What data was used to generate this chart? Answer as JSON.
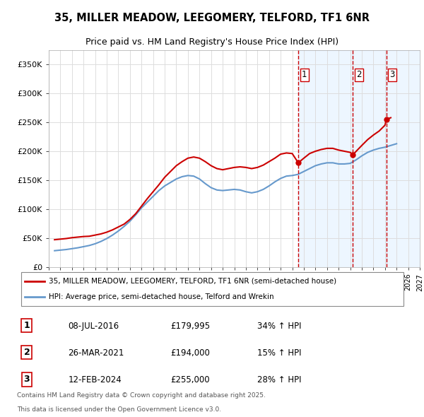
{
  "title": "35, MILLER MEADOW, LEEGOMERY, TELFORD, TF1 6NR",
  "subtitle": "Price paid vs. HM Land Registry's House Price Index (HPI)",
  "legend_line1": "35, MILLER MEADOW, LEEGOMERY, TELFORD, TF1 6NR (semi-detached house)",
  "legend_line2": "HPI: Average price, semi-detached house, Telford and Wrekin",
  "footer1": "Contains HM Land Registry data © Crown copyright and database right 2025.",
  "footer2": "This data is licensed under the Open Government Licence v3.0.",
  "transactions": [
    {
      "num": "1",
      "date": "08-JUL-2016",
      "price": "£179,995",
      "change": "34% ↑ HPI",
      "x": 2016.52
    },
    {
      "num": "2",
      "date": "26-MAR-2021",
      "price": "£194,000",
      "change": "15% ↑ HPI",
      "x": 2021.23
    },
    {
      "num": "3",
      "date": "12-FEB-2024",
      "price": "£255,000",
      "change": "28% ↑ HPI",
      "x": 2024.12
    }
  ],
  "red_line_color": "#cc0000",
  "blue_line_color": "#6699cc",
  "vline_color": "#cc0000",
  "hatch_color": "#ddeeff",
  "ylim": [
    0,
    375000
  ],
  "xlim_start": 1995,
  "xlim_end": 2027,
  "yticks": [
    0,
    50000,
    100000,
    150000,
    200000,
    250000,
    300000,
    350000
  ],
  "ytick_labels": [
    "£0",
    "£50K",
    "£100K",
    "£150K",
    "£200K",
    "£250K",
    "£300K",
    "£350K"
  ],
  "xticks": [
    1995,
    1996,
    1997,
    1998,
    1999,
    2000,
    2001,
    2002,
    2003,
    2004,
    2005,
    2006,
    2007,
    2008,
    2009,
    2010,
    2011,
    2012,
    2013,
    2014,
    2015,
    2016,
    2017,
    2018,
    2019,
    2020,
    2021,
    2022,
    2023,
    2024,
    2025,
    2026,
    2027
  ],
  "red_x": [
    1995.5,
    1996.0,
    1996.5,
    1997.0,
    1997.5,
    1998.0,
    1998.5,
    1999.0,
    1999.5,
    2000.0,
    2000.5,
    2001.0,
    2001.5,
    2002.0,
    2002.5,
    2003.0,
    2003.5,
    2004.0,
    2004.5,
    2005.0,
    2005.5,
    2006.0,
    2006.5,
    2007.0,
    2007.5,
    2008.0,
    2008.5,
    2009.0,
    2009.5,
    2010.0,
    2010.5,
    2011.0,
    2011.5,
    2012.0,
    2012.5,
    2013.0,
    2013.5,
    2014.0,
    2014.5,
    2015.0,
    2015.5,
    2016.0,
    2016.52,
    2017.0,
    2017.5,
    2018.0,
    2018.5,
    2019.0,
    2019.5,
    2020.0,
    2020.5,
    2021.0,
    2021.23,
    2022.0,
    2022.5,
    2023.0,
    2023.5,
    2024.0,
    2024.12,
    2024.5
  ],
  "red_y": [
    47000,
    48000,
    49000,
    50500,
    51500,
    52500,
    53000,
    55000,
    57000,
    60000,
    64000,
    69000,
    74000,
    82000,
    92000,
    105000,
    118000,
    130000,
    142000,
    155000,
    165000,
    175000,
    182000,
    188000,
    190000,
    188000,
    182000,
    175000,
    170000,
    168000,
    170000,
    172000,
    173000,
    172000,
    170000,
    172000,
    176000,
    182000,
    188000,
    195000,
    197000,
    196000,
    179995,
    188000,
    196000,
    200000,
    203000,
    205000,
    205000,
    202000,
    200000,
    198000,
    194000,
    210000,
    220000,
    228000,
    235000,
    245000,
    255000,
    258000
  ],
  "blue_x": [
    1995.5,
    1996.0,
    1996.5,
    1997.0,
    1997.5,
    1998.0,
    1998.5,
    1999.0,
    1999.5,
    2000.0,
    2000.5,
    2001.0,
    2001.5,
    2002.0,
    2002.5,
    2003.0,
    2003.5,
    2004.0,
    2004.5,
    2005.0,
    2005.5,
    2006.0,
    2006.5,
    2007.0,
    2007.5,
    2008.0,
    2008.5,
    2009.0,
    2009.5,
    2010.0,
    2010.5,
    2011.0,
    2011.5,
    2012.0,
    2012.5,
    2013.0,
    2013.5,
    2014.0,
    2014.5,
    2015.0,
    2015.5,
    2016.0,
    2016.5,
    2017.0,
    2017.5,
    2018.0,
    2018.5,
    2019.0,
    2019.5,
    2020.0,
    2020.5,
    2021.0,
    2021.5,
    2022.0,
    2022.5,
    2023.0,
    2023.5,
    2024.0,
    2024.5,
    2025.0
  ],
  "blue_y": [
    28000,
    29000,
    30000,
    31500,
    33000,
    35000,
    37000,
    40000,
    44000,
    49000,
    55000,
    62000,
    70000,
    79000,
    90000,
    102000,
    112000,
    122000,
    132000,
    140000,
    146000,
    152000,
    156000,
    158000,
    157000,
    152000,
    144000,
    137000,
    133000,
    132000,
    133000,
    134000,
    133000,
    130000,
    128000,
    130000,
    134000,
    140000,
    147000,
    153000,
    157000,
    158000,
    160000,
    165000,
    170000,
    175000,
    178000,
    180000,
    180000,
    178000,
    178000,
    179000,
    185000,
    192000,
    198000,
    202000,
    205000,
    207000,
    210000,
    213000
  ]
}
